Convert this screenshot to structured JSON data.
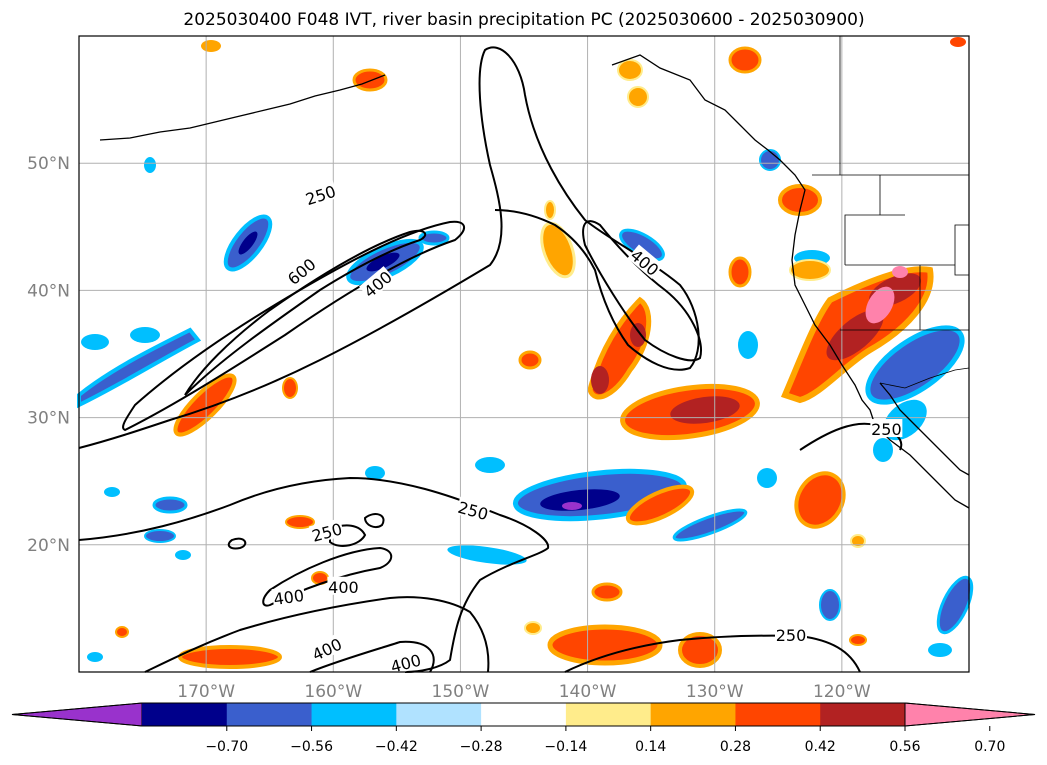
{
  "title": "2025030400 F048 IVT, river basin precipitation PC (2025030600 - 2025030900)",
  "map": {
    "lon_range": [
      -180,
      -110
    ],
    "lat_range": [
      10,
      60
    ],
    "lon_ticks": [
      {
        "value": -170,
        "label": "170°W"
      },
      {
        "value": -160,
        "label": "160°W"
      },
      {
        "value": -150,
        "label": "150°W"
      },
      {
        "value": -140,
        "label": "140°W"
      },
      {
        "value": -130,
        "label": "130°W"
      },
      {
        "value": -120,
        "label": "120°W"
      }
    ],
    "lat_ticks": [
      {
        "value": 20,
        "label": "20°N"
      },
      {
        "value": 30,
        "label": "30°N"
      },
      {
        "value": 40,
        "label": "40°N"
      },
      {
        "value": 50,
        "label": "50°N"
      }
    ],
    "grid": true,
    "ivt_contour_levels": [
      250,
      400,
      600
    ],
    "contour_labels": [
      {
        "text": "250",
        "lon": -161,
        "lat": 47.5,
        "angle": -18
      },
      {
        "text": "600",
        "lon": -162.5,
        "lat": 41.5,
        "angle": -40
      },
      {
        "text": "400",
        "lon": -156.5,
        "lat": 40.5,
        "angle": -40
      },
      {
        "text": "400",
        "lon": -135.5,
        "lat": 42.2,
        "angle": 40
      },
      {
        "text": "250",
        "lon": -149,
        "lat": 22.7,
        "angle": 15
      },
      {
        "text": "250",
        "lon": -160.5,
        "lat": 21.0,
        "angle": -15
      },
      {
        "text": "400",
        "lon": -163.5,
        "lat": 15.9,
        "angle": -8
      },
      {
        "text": "400",
        "lon": -159.2,
        "lat": 16.7,
        "angle": 0
      },
      {
        "text": "400",
        "lon": -160.5,
        "lat": 11.8,
        "angle": -25
      },
      {
        "text": "400",
        "lon": -154.3,
        "lat": 10.7,
        "angle": -15
      },
      {
        "text": "250",
        "lon": -124,
        "lat": 12.9,
        "angle": 0
      },
      {
        "text": "250",
        "lon": -116.5,
        "lat": 29.1,
        "angle": 0
      }
    ]
  },
  "colorbar": {
    "colors": [
      "#9932cc",
      "#00008b",
      "#3a5fcd",
      "#00bfff",
      "#b0e2ff",
      "#ffffff",
      "#ffec8b",
      "#ffa500",
      "#ff4500",
      "#b22222",
      "#ff82ab"
    ],
    "tick_values": [
      "−0.70",
      "−0.56",
      "−0.42",
      "−0.28",
      "−0.14",
      "0.14",
      "0.28",
      "0.42",
      "0.56",
      "0.70"
    ],
    "extend": "both"
  }
}
